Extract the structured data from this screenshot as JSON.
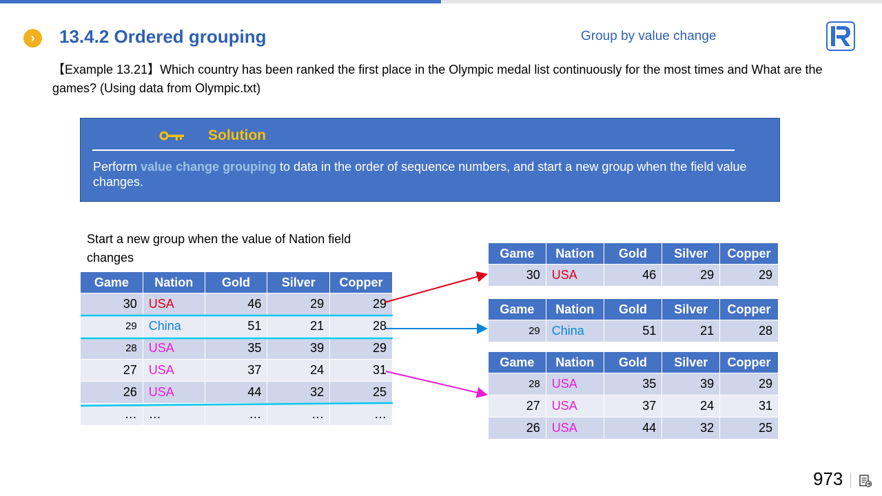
{
  "header": {
    "title": "13.4.2 Ordered grouping",
    "subtitle": "Group by value change",
    "bullet_icon": "chevron-right-icon",
    "logo_icon": "r-logo-icon"
  },
  "example": {
    "text": "【Example 13.21】Which country has been ranked the first place in the Olympic medal list continuously for the most times and What are the games? (Using data from Olympic.txt)"
  },
  "solution": {
    "icon": "key-icon",
    "title": "Solution",
    "text_before": "Perform ",
    "text_highlight": "value change grouping",
    "text_after": " to data in the order of sequence numbers, and start a new group when the field value changes."
  },
  "caption": "Start a new group when the value of Nation field changes",
  "columns": [
    "Game",
    "Nation",
    "Gold",
    "Silver",
    "Copper"
  ],
  "source_table": {
    "rows": [
      [
        "30",
        "USA",
        "46",
        "29",
        "29"
      ],
      [
        "29",
        "China",
        "51",
        "21",
        "28"
      ],
      [
        "28",
        "USA",
        "35",
        "39",
        "29"
      ],
      [
        "27",
        "USA",
        "37",
        "24",
        "31"
      ],
      [
        "26",
        "USA",
        "44",
        "32",
        "25"
      ],
      [
        "…",
        "…",
        "…",
        "…",
        "…"
      ]
    ]
  },
  "group1": {
    "rows": [
      [
        "30",
        "USA",
        "46",
        "29",
        "29"
      ]
    ]
  },
  "group2": {
    "rows": [
      [
        "29",
        "China",
        "51",
        "21",
        "28"
      ]
    ]
  },
  "group3": {
    "rows": [
      [
        "28",
        "USA",
        "35",
        "39",
        "29"
      ],
      [
        "27",
        "USA",
        "37",
        "24",
        "31"
      ],
      [
        "26",
        "USA",
        "44",
        "32",
        "25"
      ]
    ]
  },
  "colors": {
    "accent_blue": "#4472c4",
    "title_blue": "#2f5fb3",
    "gold": "#ffc000",
    "red": "#e0001a",
    "cyan": "#00b0f0",
    "magenta": "#e81ed4"
  },
  "footer": {
    "page_number": "973",
    "page_icon": "slide-notes-icon"
  }
}
